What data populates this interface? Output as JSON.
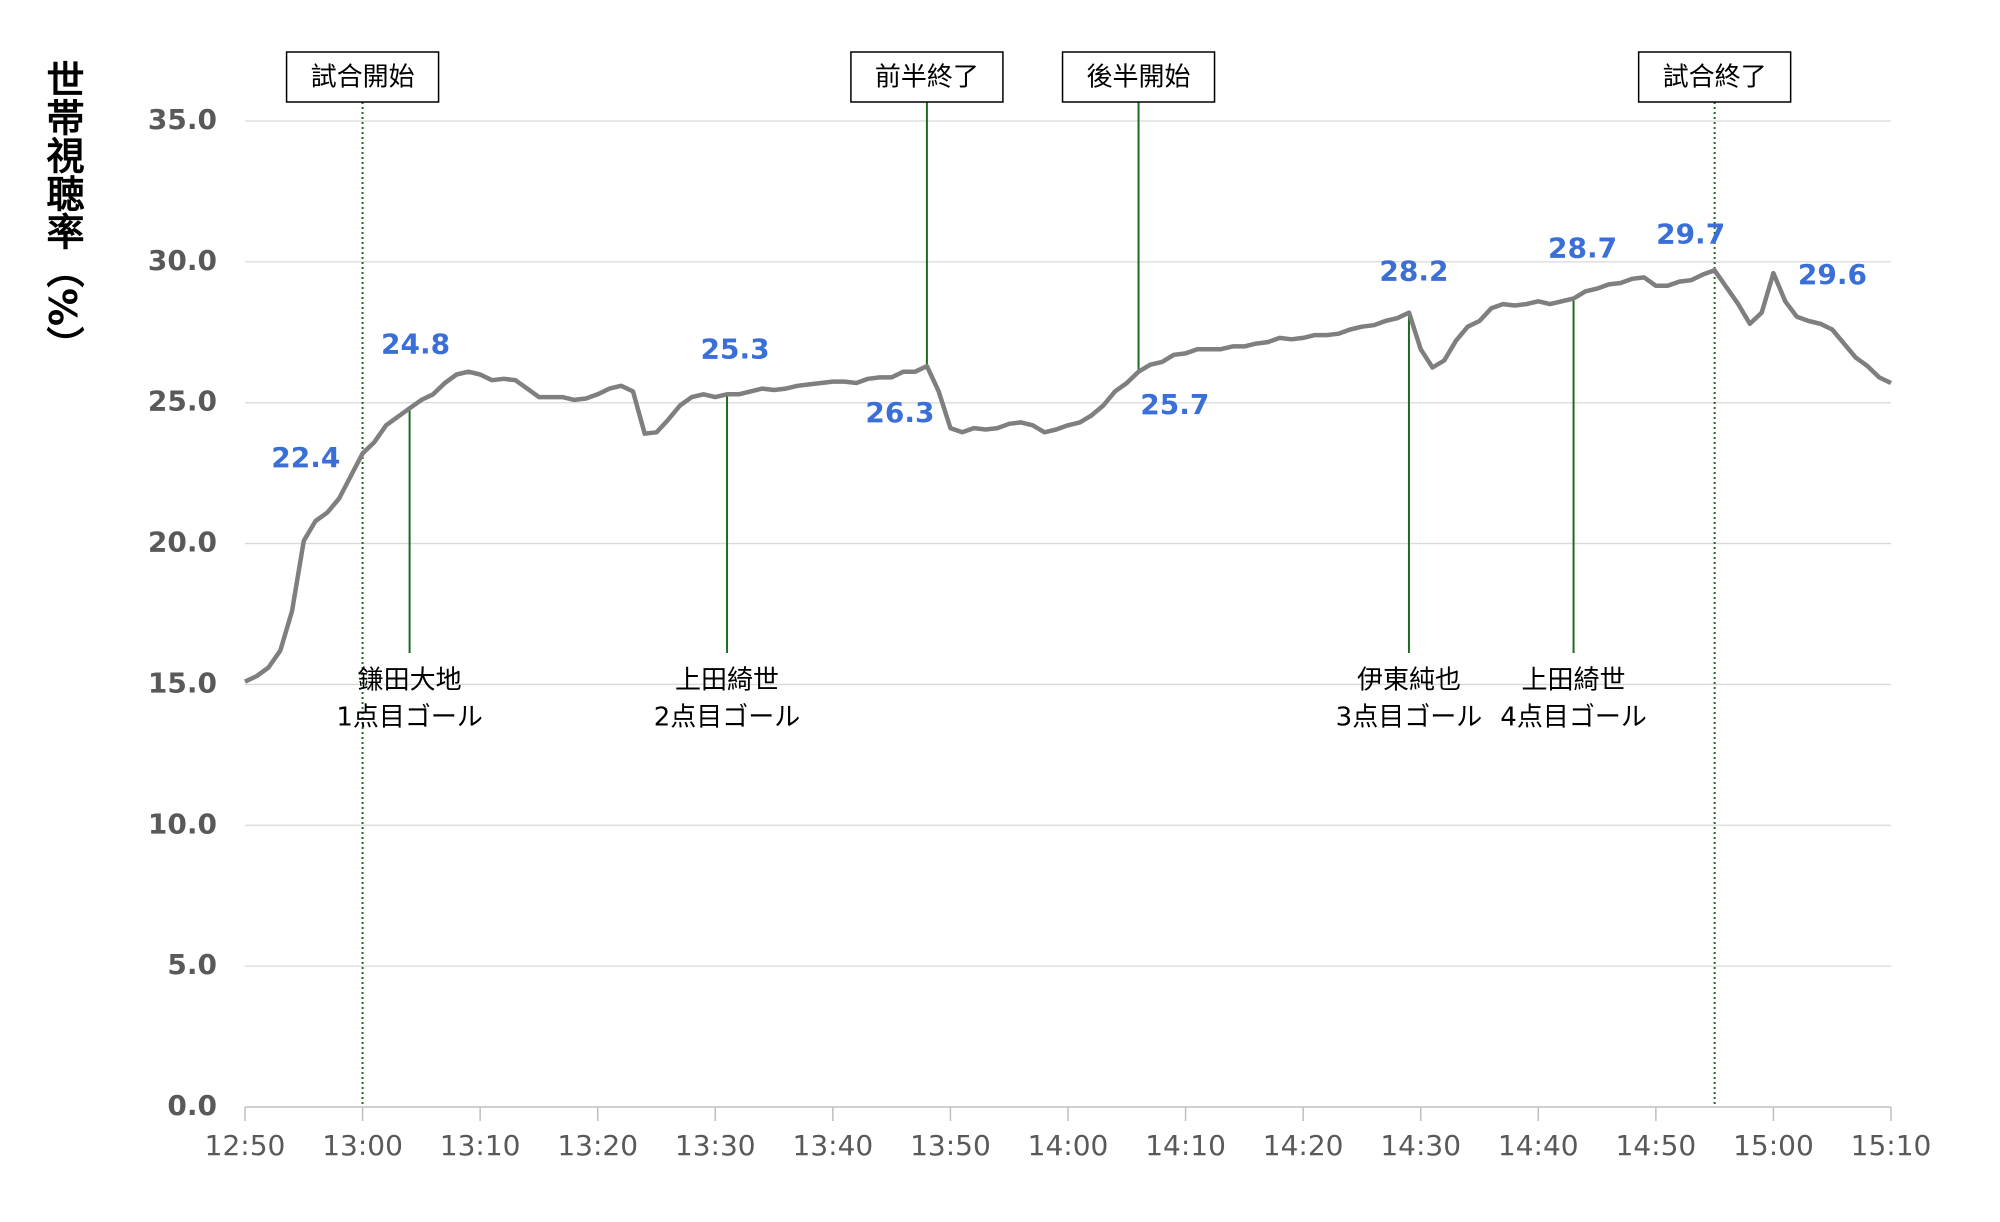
{
  "chart_data": {
    "type": "line",
    "y_label": "世帯視聴率（%）",
    "x": [
      "12:50",
      "12:51",
      "12:52",
      "12:53",
      "12:54",
      "12:55",
      "12:56",
      "12:57",
      "12:58",
      "12:59",
      "13:00",
      "13:01",
      "13:02",
      "13:03",
      "13:04",
      "13:05",
      "13:06",
      "13:07",
      "13:08",
      "13:09",
      "13:10",
      "13:11",
      "13:12",
      "13:13",
      "13:14",
      "13:15",
      "13:16",
      "13:17",
      "13:18",
      "13:19",
      "13:20",
      "13:21",
      "13:22",
      "13:23",
      "13:24",
      "13:25",
      "13:26",
      "13:27",
      "13:28",
      "13:29",
      "13:30",
      "13:31",
      "13:32",
      "13:33",
      "13:34",
      "13:35",
      "13:36",
      "13:37",
      "13:38",
      "13:39",
      "13:40",
      "13:41",
      "13:42",
      "13:43",
      "13:44",
      "13:45",
      "13:46",
      "13:47",
      "13:48",
      "13:49",
      "13:50",
      "13:51",
      "13:52",
      "13:53",
      "13:54",
      "13:55",
      "13:56",
      "13:57",
      "13:58",
      "13:59",
      "14:00",
      "14:01",
      "14:02",
      "14:03",
      "14:04",
      "14:05",
      "14:06",
      "14:07",
      "14:08",
      "14:09",
      "14:10",
      "14:11",
      "14:12",
      "14:13",
      "14:14",
      "14:15",
      "14:16",
      "14:17",
      "14:18",
      "14:19",
      "14:20",
      "14:21",
      "14:22",
      "14:23",
      "14:24",
      "14:25",
      "14:26",
      "14:27",
      "14:28",
      "14:29",
      "14:30",
      "14:31",
      "14:32",
      "14:33",
      "14:34",
      "14:35",
      "14:36",
      "14:37",
      "14:38",
      "14:39",
      "14:40",
      "14:41",
      "14:42",
      "14:43",
      "14:44",
      "14:45",
      "14:46",
      "14:47",
      "14:48",
      "14:49",
      "14:50",
      "14:51",
      "14:52",
      "14:53",
      "14:54",
      "14:55",
      "14:56",
      "14:57",
      "14:58",
      "14:59",
      "15:00",
      "15:01",
      "15:02",
      "15:03",
      "15:04",
      "15:05",
      "15:06",
      "15:07",
      "15:08",
      "15:09",
      "15:10"
    ],
    "series": [
      {
        "color": "#7f7f7f",
        "values": [
          15.1,
          15.3,
          15.6,
          16.2,
          17.6,
          20.1,
          20.8,
          21.1,
          21.6,
          22.4,
          23.2,
          23.6,
          24.2,
          24.5,
          24.8,
          25.1,
          25.3,
          25.7,
          26.0,
          26.1,
          26.0,
          25.8,
          25.85,
          25.8,
          25.5,
          25.2,
          25.2,
          25.2,
          25.1,
          25.15,
          25.3,
          25.5,
          25.6,
          25.4,
          23.9,
          23.95,
          24.4,
          24.9,
          25.2,
          25.3,
          25.2,
          25.3,
          25.3,
          25.4,
          25.5,
          25.45,
          25.5,
          25.6,
          25.65,
          25.7,
          25.75,
          25.75,
          25.7,
          25.85,
          25.9,
          25.9,
          26.1,
          26.1,
          26.3,
          25.4,
          24.1,
          23.95,
          24.1,
          24.05,
          24.1,
          24.25,
          24.3,
          24.2,
          23.95,
          24.05,
          24.2,
          24.3,
          24.55,
          24.9,
          25.4,
          25.7,
          26.1,
          26.35,
          26.45,
          26.7,
          26.75,
          26.9,
          26.9,
          26.9,
          27.0,
          27.0,
          27.1,
          27.15,
          27.3,
          27.25,
          27.3,
          27.4,
          27.4,
          27.45,
          27.6,
          27.7,
          27.75,
          27.9,
          28.0,
          28.2,
          26.9,
          26.25,
          26.5,
          27.2,
          27.7,
          27.9,
          28.35,
          28.5,
          28.45,
          28.5,
          28.6,
          28.5,
          28.6,
          28.7,
          28.95,
          29.05,
          29.2,
          29.25,
          29.4,
          29.45,
          29.15,
          29.15,
          29.3,
          29.35,
          29.55,
          29.7,
          29.1,
          28.5,
          27.8,
          28.2,
          29.6,
          28.6,
          28.05,
          27.9,
          27.8,
          27.6,
          27.1,
          26.6,
          26.3,
          25.9,
          25.7
        ]
      }
    ],
    "point_labels": [
      {
        "x": "12:59",
        "value": 22.4
      },
      {
        "x": "13:04",
        "value": 24.8
      },
      {
        "x": "13:31",
        "value": 25.3
      },
      {
        "x": "13:48",
        "value": 26.3
      },
      {
        "x": "14:05",
        "value": 25.7
      },
      {
        "x": "14:29",
        "value": 28.2
      },
      {
        "x": "14:43",
        "value": 28.7
      },
      {
        "x": "14:55",
        "value": 29.7
      },
      {
        "x": "15:00",
        "value": 29.6
      }
    ],
    "events": [
      {
        "time": "13:00",
        "label": "試合開始",
        "style": "dotted"
      },
      {
        "time": "13:48",
        "label": "前半終了",
        "style": "solid"
      },
      {
        "time": "14:06",
        "label": "後半開始",
        "style": "solid"
      },
      {
        "time": "14:55",
        "label": "試合終了",
        "style": "dotted"
      }
    ],
    "goals": [
      {
        "time": "13:04",
        "player": "鎌田大地",
        "label": "1点目ゴール"
      },
      {
        "time": "13:31",
        "player": "上田綺世",
        "label": "2点目ゴール"
      },
      {
        "time": "14:29",
        "player": "伊東純也",
        "label": "3点目ゴール"
      },
      {
        "time": "14:43",
        "player": "上田綺世",
        "label": "4点目ゴール"
      }
    ],
    "xlim": [
      "12:50",
      "15:10"
    ],
    "xticks": [
      "12:50",
      "13:00",
      "13:10",
      "13:20",
      "13:30",
      "13:40",
      "13:50",
      "14:00",
      "14:10",
      "14:20",
      "14:30",
      "14:40",
      "14:50",
      "15:00",
      "15:10"
    ],
    "ylim": [
      0,
      35
    ],
    "yticks": [
      {
        "value": 0,
        "label": "0.0"
      },
      {
        "value": 5,
        "label": "5.0"
      },
      {
        "value": 10,
        "label": "10.0"
      },
      {
        "value": 15,
        "label": "15.0"
      },
      {
        "value": 20,
        "label": "20.0"
      },
      {
        "value": 25,
        "label": "25.0"
      },
      {
        "value": 30,
        "label": "30.0"
      },
      {
        "value": 35,
        "label": "35.0"
      }
    ],
    "grid": true,
    "event_color": "#1e6b1e",
    "label_color": "#3a6fd8"
  }
}
